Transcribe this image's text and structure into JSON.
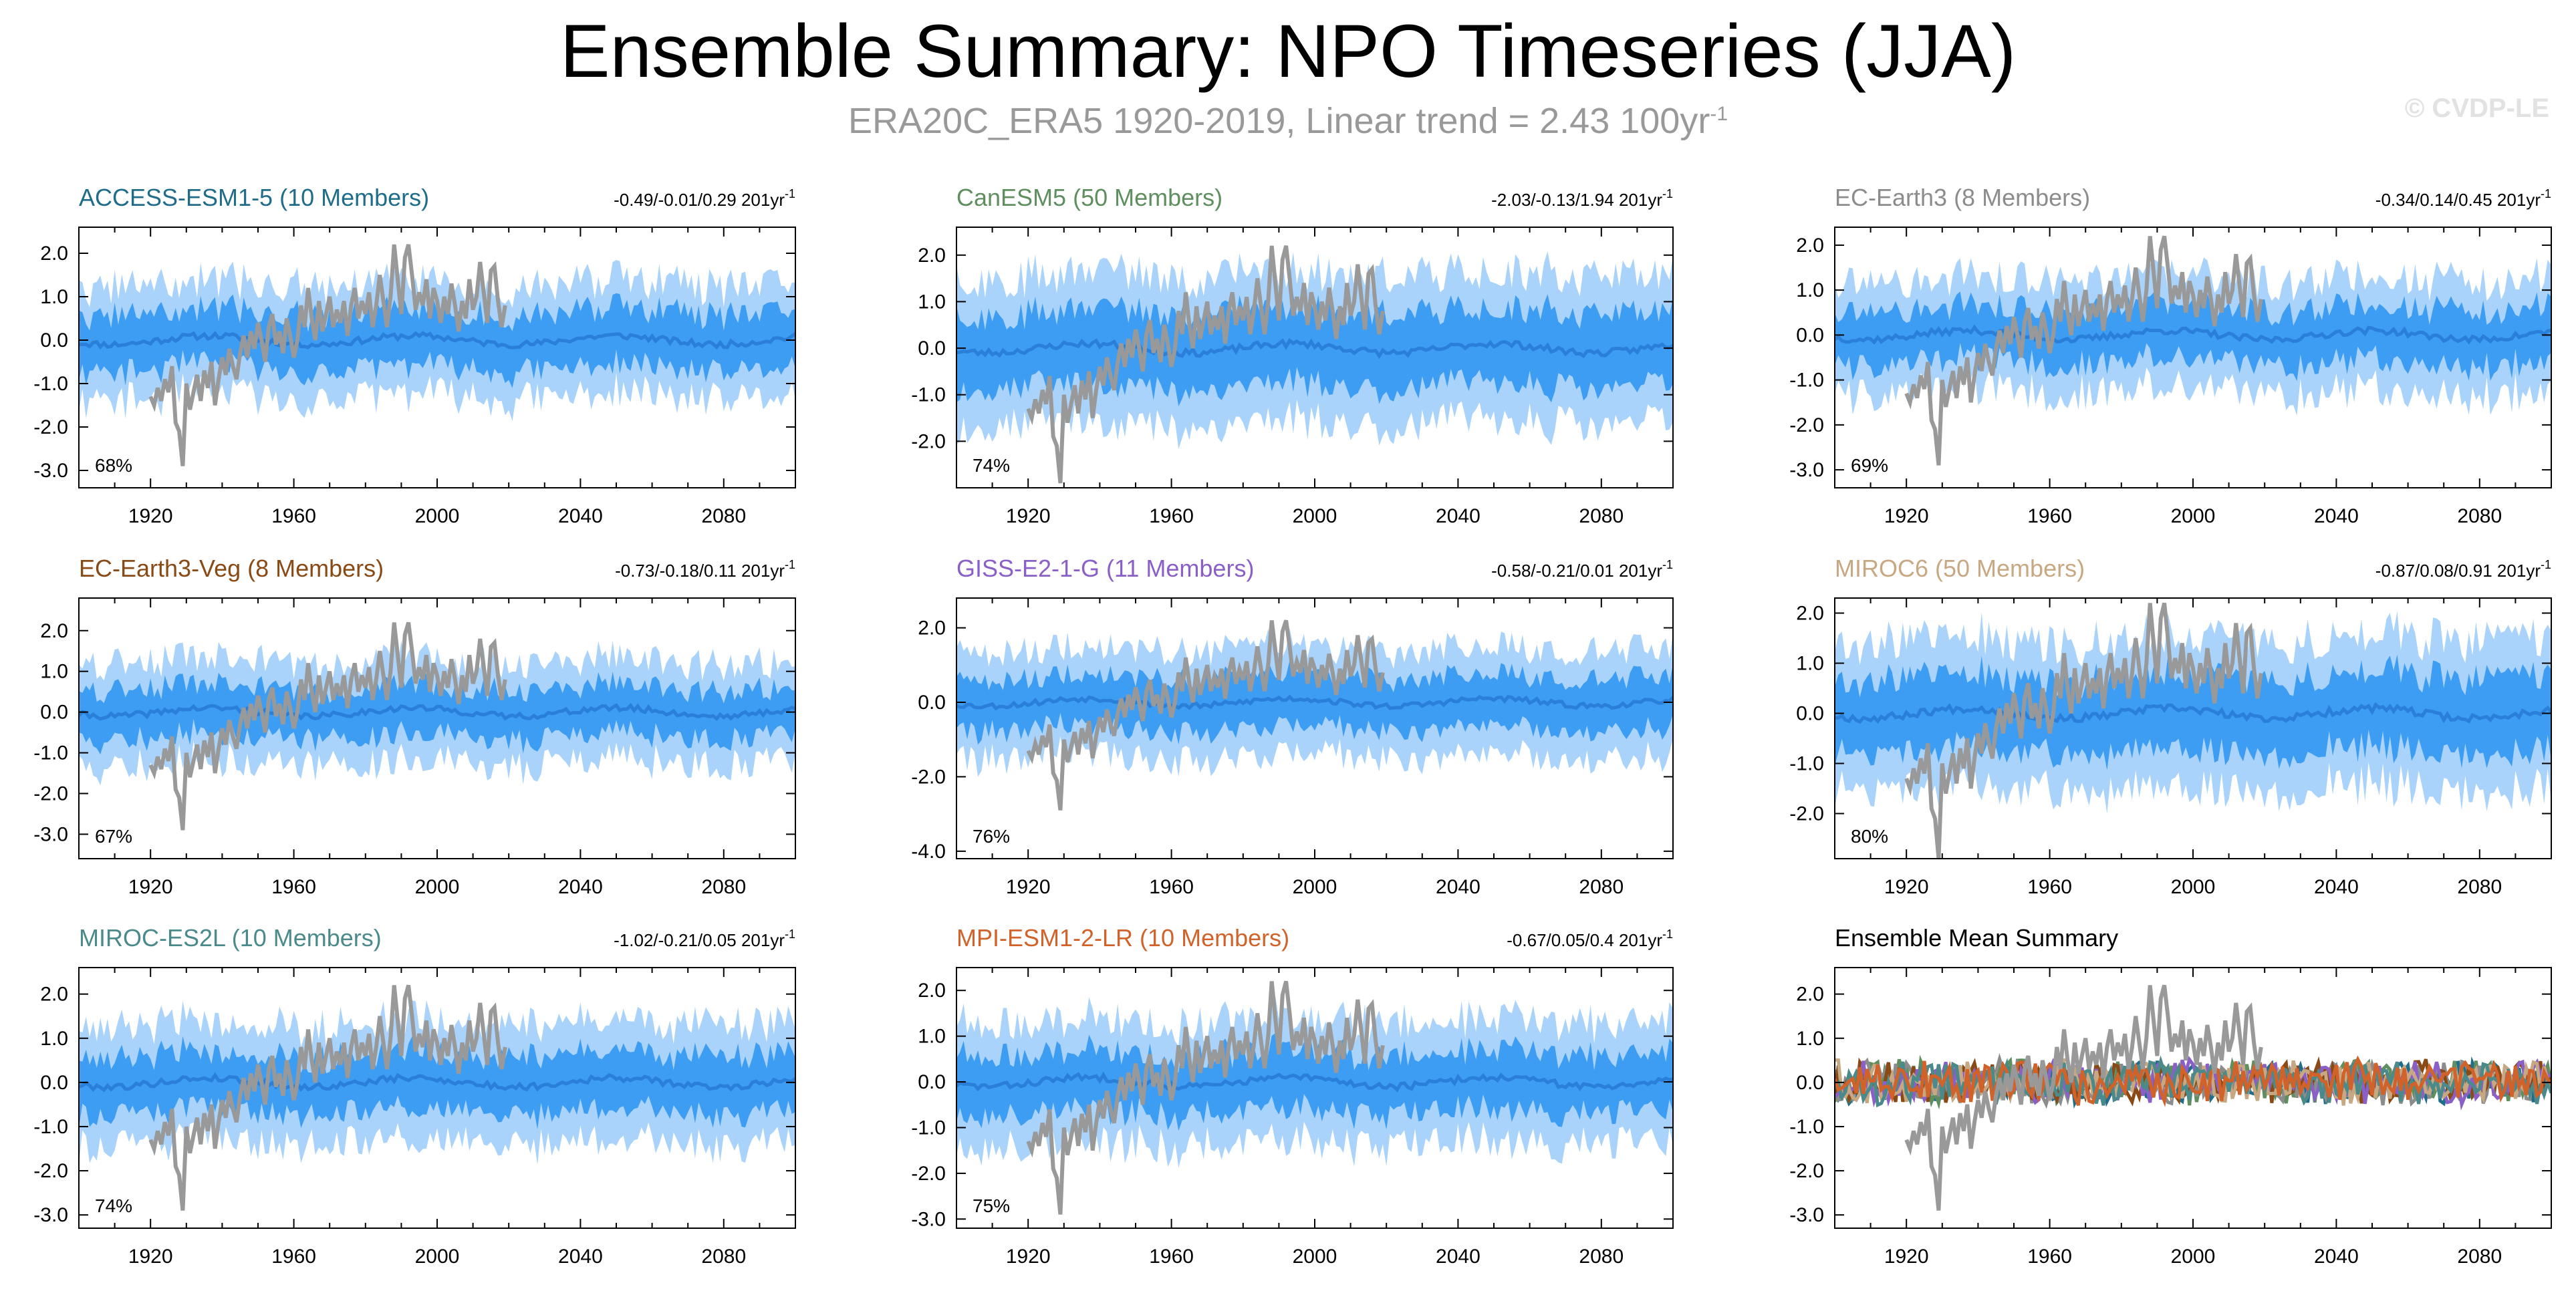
{
  "title": "Ensemble Summary: NPO Timeseries (JJA)",
  "subtitle": "ERA20C_ERA5 1920-2019, Linear trend = 2.43 100yr",
  "subtitle_exponent": "-1",
  "watermark": "© CVDP-LE",
  "colors": {
    "band_outer": "#a9d3fb",
    "band_inner": "#3d9df3",
    "ens_mean": "#2a7fd9",
    "observed": "#999999",
    "axis": "#000000"
  },
  "chart_data": [
    {
      "type": "area",
      "title": "ACCESS-ESM1-5 (10 Members)",
      "title_color": "#1f6d8a",
      "trend_label": "-0.49/-0.01/0.29 201yr",
      "trend_exponent": "-1",
      "percent_label": "68%",
      "xlim": [
        1900,
        2100
      ],
      "ylim": [
        -3.4,
        2.6
      ],
      "xticks": [
        1920,
        1960,
        2000,
        2040,
        2080
      ],
      "yticks": [
        2.0,
        1.0,
        0.0,
        -1.0,
        -2.0,
        -3.0
      ],
      "ytick_labels": [
        "2.0",
        "1.0",
        "0.0",
        "-1.0",
        "-2.0",
        "-3.0"
      ],
      "band_outer_halfwidth": 1.3,
      "band_inner_halfwidth": 0.65,
      "seed": 11
    },
    {
      "type": "area",
      "title": "CanESM5 (50 Members)",
      "title_color": "#5f8f5f",
      "trend_label": "-2.03/-0.13/1.94 201yr",
      "trend_exponent": "-1",
      "percent_label": "74%",
      "xlim": [
        1900,
        2100
      ],
      "ylim": [
        -3.0,
        2.6
      ],
      "xticks": [
        1920,
        1960,
        2000,
        2040,
        2080
      ],
      "yticks": [
        2.0,
        1.0,
        0.0,
        -1.0,
        -2.0
      ],
      "ytick_labels": [
        "2.0",
        "1.0",
        "0.0",
        "-1.0",
        "-2.0"
      ],
      "band_outer_halfwidth": 1.6,
      "band_inner_halfwidth": 0.8,
      "seed": 23
    },
    {
      "type": "area",
      "title": "EC-Earth3 (8 Members)",
      "title_color": "#8c8c8c",
      "trend_label": "-0.34/0.14/0.45 201yr",
      "trend_exponent": "-1",
      "percent_label": "69%",
      "xlim": [
        1900,
        2100
      ],
      "ylim": [
        -3.4,
        2.4
      ],
      "xticks": [
        1920,
        1960,
        2000,
        2040,
        2080
      ],
      "yticks": [
        2.0,
        1.0,
        0.0,
        -1.0,
        -2.0,
        -3.0
      ],
      "ytick_labels": [
        "2.0",
        "1.0",
        "0.0",
        "-1.0",
        "-2.0",
        "-3.0"
      ],
      "band_outer_halfwidth": 1.25,
      "band_inner_halfwidth": 0.6,
      "seed": 37
    },
    {
      "type": "area",
      "title": "EC-Earth3-Veg (8 Members)",
      "title_color": "#8a4a16",
      "trend_label": "-0.73/-0.18/0.11 201yr",
      "trend_exponent": "-1",
      "percent_label": "67%",
      "xlim": [
        1900,
        2100
      ],
      "ylim": [
        -3.6,
        2.8
      ],
      "xticks": [
        1920,
        1960,
        2000,
        2040,
        2080
      ],
      "yticks": [
        2.0,
        1.0,
        0.0,
        -1.0,
        -2.0,
        -3.0
      ],
      "ytick_labels": [
        "2.0",
        "1.0",
        "0.0",
        "-1.0",
        "-2.0",
        "-3.0"
      ],
      "band_outer_halfwidth": 1.25,
      "band_inner_halfwidth": 0.6,
      "seed": 41
    },
    {
      "type": "area",
      "title": "GISS-E2-1-G (11 Members)",
      "title_color": "#8a5fc8",
      "trend_label": "-0.58/-0.21/0.01 201yr",
      "trend_exponent": "-1",
      "percent_label": "76%",
      "xlim": [
        1900,
        2100
      ],
      "ylim": [
        -4.2,
        2.8
      ],
      "xticks": [
        1920,
        1960,
        2000,
        2040,
        2080
      ],
      "yticks": [
        2.0,
        0.0,
        -2.0,
        -4.0
      ],
      "ytick_labels": [
        "2.0",
        "0.0",
        "-2.0",
        "-4.0"
      ],
      "band_outer_halfwidth": 1.45,
      "band_inner_halfwidth": 0.7,
      "seed": 53
    },
    {
      "type": "area",
      "title": "MIROC6 (50 Members)",
      "title_color": "#c8a882",
      "trend_label": "-0.87/0.08/0.91 201yr",
      "trend_exponent": "-1",
      "percent_label": "80%",
      "xlim": [
        1900,
        2100
      ],
      "ylim": [
        -2.9,
        2.3
      ],
      "xticks": [
        1920,
        1960,
        2000,
        2040,
        2080
      ],
      "yticks": [
        2.0,
        1.0,
        0.0,
        -1.0,
        -2.0
      ],
      "ytick_labels": [
        "2.0",
        "1.0",
        "0.0",
        "-1.0",
        "-2.0"
      ],
      "band_outer_halfwidth": 1.5,
      "band_inner_halfwidth": 0.75,
      "seed": 67
    },
    {
      "type": "area",
      "title": "MIROC-ES2L (10 Members)",
      "title_color": "#4a8a8a",
      "trend_label": "-1.02/-0.21/0.05 201yr",
      "trend_exponent": "-1",
      "percent_label": "74%",
      "xlim": [
        1900,
        2100
      ],
      "ylim": [
        -3.3,
        2.6
      ],
      "xticks": [
        1920,
        1960,
        2000,
        2040,
        2080
      ],
      "yticks": [
        2.0,
        1.0,
        0.0,
        -1.0,
        -2.0,
        -3.0
      ],
      "ytick_labels": [
        "2.0",
        "1.0",
        "0.0",
        "-1.0",
        "-2.0",
        "-3.0"
      ],
      "band_outer_halfwidth": 1.35,
      "band_inner_halfwidth": 0.65,
      "seed": 79
    },
    {
      "type": "area",
      "title": "MPI-ESM1-2-LR (10 Members)",
      "title_color": "#d0622a",
      "trend_label": "-0.67/0.05/0.4 201yr",
      "trend_exponent": "-1",
      "percent_label": "75%",
      "xlim": [
        1900,
        2100
      ],
      "ylim": [
        -3.2,
        2.5
      ],
      "xticks": [
        1920,
        1960,
        2000,
        2040,
        2080
      ],
      "yticks": [
        2.0,
        1.0,
        0.0,
        -1.0,
        -2.0,
        -3.0
      ],
      "ytick_labels": [
        "2.0",
        "1.0",
        "0.0",
        "-1.0",
        "-2.0",
        "-3.0"
      ],
      "band_outer_halfwidth": 1.35,
      "band_inner_halfwidth": 0.65,
      "seed": 83
    },
    {
      "type": "line",
      "title": "Ensemble Mean Summary",
      "title_color": "#000000",
      "trend_label": "",
      "trend_exponent": "",
      "percent_label": "",
      "xlim": [
        1900,
        2100
      ],
      "ylim": [
        -3.3,
        2.6
      ],
      "xticks": [
        1920,
        1960,
        2000,
        2040,
        2080
      ],
      "yticks": [
        2.0,
        1.0,
        0.0,
        -1.0,
        -2.0,
        -3.0
      ],
      "ytick_labels": [
        "2.0",
        "1.0",
        "0.0",
        "-1.0",
        "-2.0",
        "-3.0"
      ],
      "series_colors": [
        "#1f6d8a",
        "#5f8f5f",
        "#8c8c8c",
        "#8a4a16",
        "#8a5fc8",
        "#c8a882",
        "#4a8a8a",
        "#d0622a"
      ],
      "seed": 97
    }
  ],
  "observed_series": {
    "x": [
      1920,
      1921,
      1922,
      1923,
      1924,
      1925,
      1926,
      1927,
      1928,
      1929,
      1930,
      1931,
      1932,
      1933,
      1934,
      1935,
      1936,
      1937,
      1938,
      1939,
      1940,
      1941,
      1942,
      1943,
      1944,
      1945,
      1946,
      1947,
      1948,
      1949,
      1950,
      1951,
      1952,
      1953,
      1954,
      1955,
      1956,
      1957,
      1958,
      1959,
      1960,
      1961,
      1962,
      1963,
      1964,
      1965,
      1966,
      1967,
      1968,
      1969,
      1970,
      1971,
      1972,
      1973,
      1974,
      1975,
      1976,
      1977,
      1978,
      1979,
      1980,
      1981,
      1982,
      1983,
      1984,
      1985,
      1986,
      1987,
      1988,
      1989,
      1990,
      1991,
      1992,
      1993,
      1994,
      1995,
      1996,
      1997,
      1998,
      1999,
      2000,
      2001,
      2002,
      2003,
      2004,
      2005,
      2006,
      2007,
      2008,
      2009,
      2010,
      2011,
      2012,
      2013,
      2014,
      2015,
      2016,
      2017,
      2018,
      2019
    ],
    "y": [
      -1.3,
      -1.5,
      -1.1,
      -1.4,
      -0.9,
      -1.2,
      -0.6,
      -1.9,
      -2.1,
      -2.9,
      -1.0,
      -1.6,
      -1.2,
      -0.8,
      -1.4,
      -0.7,
      -1.1,
      -0.5,
      -1.5,
      -0.9,
      -0.4,
      -0.8,
      -0.2,
      -0.6,
      -0.9,
      -0.3,
      0.1,
      -0.4,
      0.2,
      -0.2,
      0.4,
      0.0,
      -0.5,
      0.3,
      0.6,
      -0.1,
      0.2,
      -0.3,
      0.5,
      0.1,
      -0.4,
      0.0,
      0.8,
      0.3,
      1.2,
      0.5,
      0.0,
      0.9,
      0.2,
      0.6,
      1.0,
      0.3,
      0.7,
      0.4,
      0.9,
      0.1,
      0.8,
      1.2,
      0.5,
      0.9,
      0.6,
      1.1,
      0.3,
      0.8,
      1.5,
      0.9,
      0.3,
      1.0,
      2.2,
      1.4,
      0.6,
      1.9,
      2.2,
      1.5,
      0.7,
      1.1,
      0.8,
      1.4,
      0.5,
      1.2,
      0.9,
      0.4,
      1.0,
      0.6,
      1.3,
      0.8,
      0.2,
      0.9,
      0.5,
      1.4,
      0.7,
      1.0,
      1.8,
      1.1,
      0.4,
      1.6,
      1.7,
      0.9,
      0.3,
      0.8
    ]
  }
}
